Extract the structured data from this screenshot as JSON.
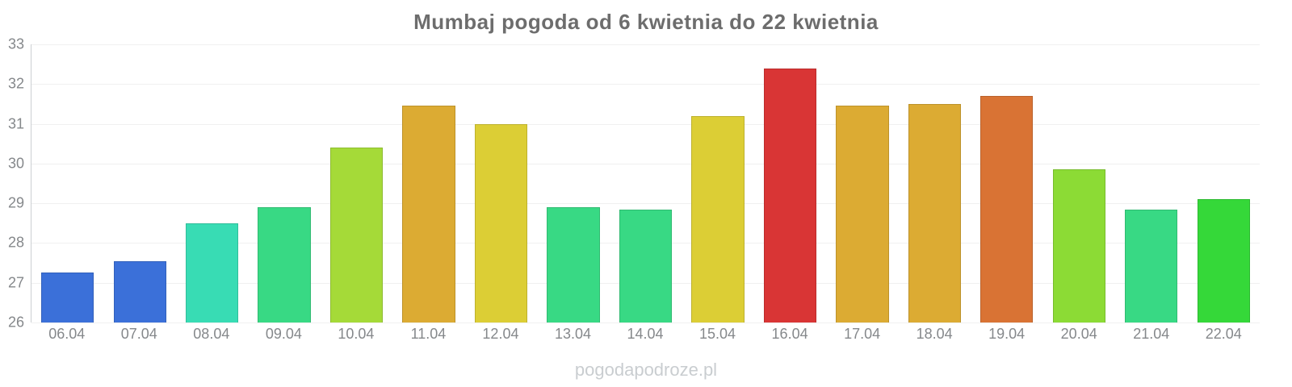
{
  "chart_data": {
    "type": "bar",
    "title": "Mumbaj pogoda od 6 kwietnia do 22 kwietnia",
    "categories": [
      "06.04",
      "07.04",
      "08.04",
      "09.04",
      "10.04",
      "11.04",
      "12.04",
      "13.04",
      "14.04",
      "15.04",
      "16.04",
      "17.04",
      "18.04",
      "19.04",
      "20.04",
      "21.04",
      "22.04"
    ],
    "values": [
      27.25,
      27.55,
      28.5,
      28.9,
      30.4,
      31.45,
      31.0,
      28.9,
      28.85,
      31.2,
      32.4,
      31.45,
      31.5,
      31.7,
      29.85,
      28.85,
      29.1
    ],
    "bar_colors": [
      "#3b70d9",
      "#3b70d9",
      "#38dcb4",
      "#38d984",
      "#a5da38",
      "#dcab33",
      "#dcce35",
      "#38d984",
      "#38d984",
      "#dcce35",
      "#d93535",
      "#dcab33",
      "#dcab33",
      "#d97334",
      "#8cdb35",
      "#38d984",
      "#35d839"
    ],
    "xlabel": "",
    "ylabel": "",
    "ylim": [
      26,
      33
    ],
    "yticks": [
      26,
      27,
      28,
      29,
      30,
      31,
      32,
      33
    ],
    "grid": true,
    "legend_position": "none",
    "watermark": "pogodapodroze.pl"
  },
  "style": {
    "title_color": "#6d6d6d",
    "axis_label_color": "#85888b",
    "gridline_color": "#f0f0f0",
    "axis_line_color": "#ccd0d3",
    "watermark_color": "#c9cdd0",
    "background": "#ffffff"
  }
}
